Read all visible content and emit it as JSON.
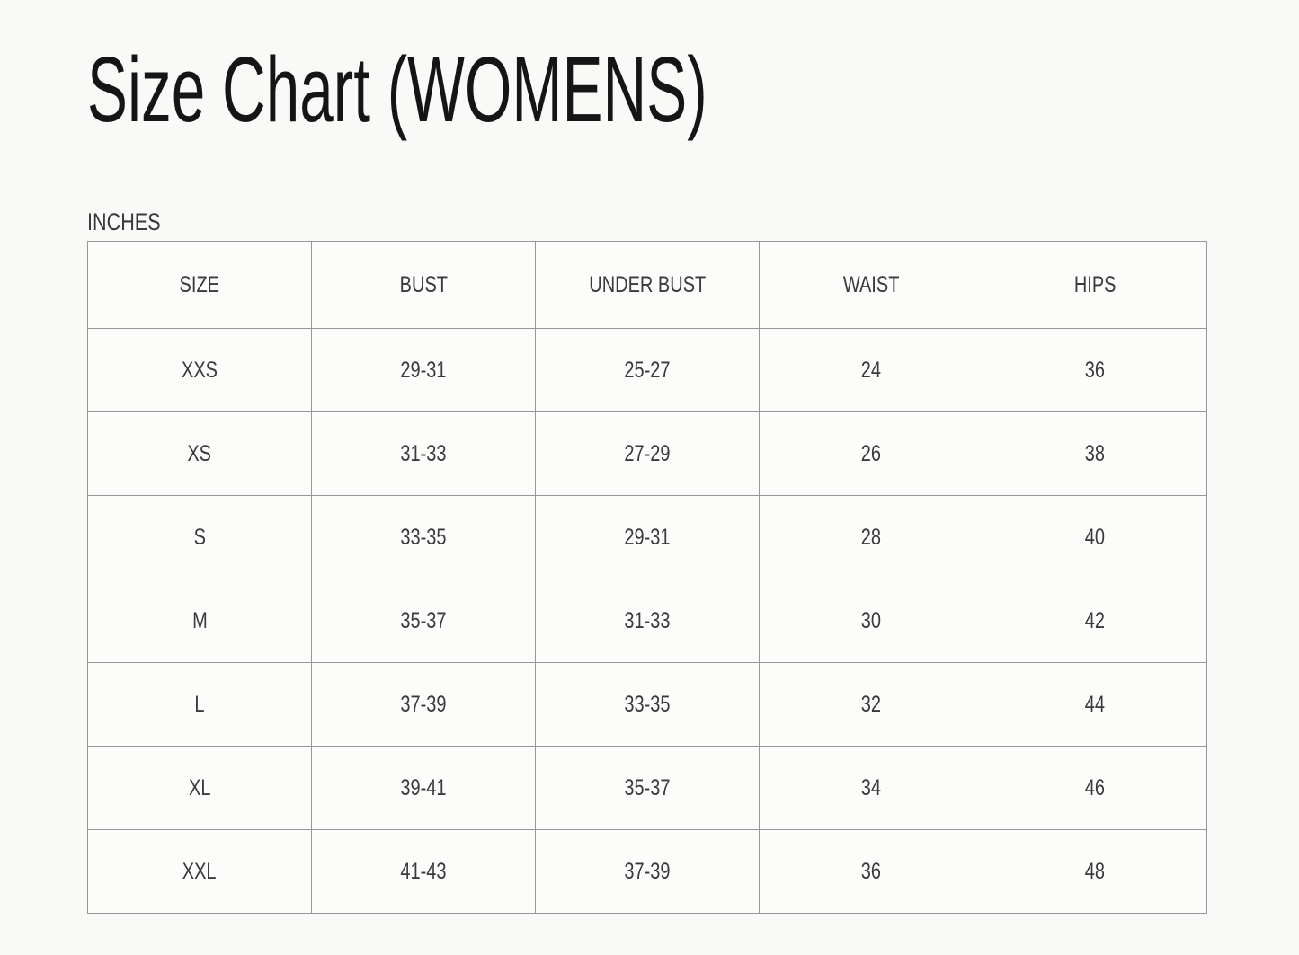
{
  "page": {
    "title": "Size Chart (WOMENS)",
    "unit_label": "INCHES"
  },
  "size_table": {
    "columns": [
      "SIZE",
      "BUST",
      "UNDER BUST",
      "WAIST",
      "HIPS"
    ],
    "rows": [
      [
        "XXS",
        "29-31",
        "25-27",
        "24",
        "36"
      ],
      [
        "XS",
        "31-33",
        "27-29",
        "26",
        "38"
      ],
      [
        "S",
        "33-35",
        "29-31",
        "28",
        "40"
      ],
      [
        "M",
        "35-37",
        "31-33",
        "30",
        "42"
      ],
      [
        "L",
        "37-39",
        "33-35",
        "32",
        "44"
      ],
      [
        "XL",
        "39-41",
        "35-37",
        "34",
        "46"
      ],
      [
        "XXL",
        "41-43",
        "37-39",
        "36",
        "48"
      ]
    ]
  },
  "colors": {
    "page_background": "#f9f9f7",
    "table_background": "#fcfcfb",
    "table_border": "#979797",
    "title_text": "#151515",
    "table_text": "#3a3a3a"
  }
}
